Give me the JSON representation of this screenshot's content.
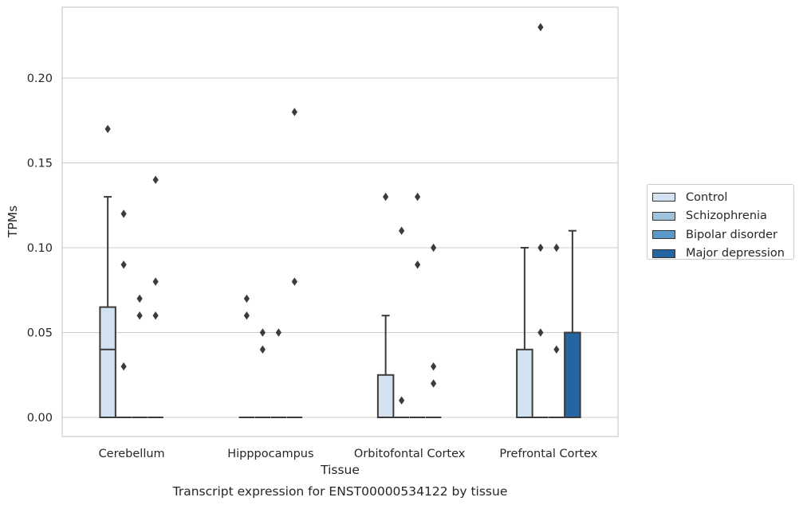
{
  "chart_data": {
    "type": "box",
    "title": "Transcript expression for ENST00000534122 by tissue",
    "xlabel": "Tissue",
    "ylabel": "TPMs",
    "categories": [
      "Cerebellum",
      "Hipppocampus",
      "Orbitofontal Cortex",
      "Prefrontal Cortex"
    ],
    "ylim": [
      -0.011,
      0.242
    ],
    "yticks": [
      "0.00",
      "0.05",
      "0.10",
      "0.15",
      "0.20"
    ],
    "ytick_values": [
      0,
      0.05,
      0.1,
      0.15,
      0.2
    ],
    "grid": "horizontal",
    "legend_position": "right",
    "series": [
      {
        "name": "Control",
        "color": "#d3e2f0",
        "boxes": [
          {
            "q1": 0,
            "median": 0.04,
            "q3": 0.065,
            "whislo": 0,
            "whishi": 0.13,
            "fliers": [
              0.17
            ]
          },
          {
            "q1": 0,
            "median": 0,
            "q3": 0,
            "whislo": 0,
            "whishi": 0,
            "fliers": [
              0.06,
              0.07
            ]
          },
          {
            "q1": 0,
            "median": 0,
            "q3": 0.025,
            "whislo": 0,
            "whishi": 0.06,
            "fliers": [
              0.13
            ]
          },
          {
            "q1": 0,
            "median": 0,
            "q3": 0.04,
            "whislo": 0,
            "whishi": 0.1,
            "fliers": []
          }
        ]
      },
      {
        "name": "Schizophrenia",
        "color": "#9fc3dc",
        "boxes": [
          {
            "q1": 0,
            "median": 0,
            "q3": 0,
            "whislo": 0,
            "whishi": 0,
            "fliers": [
              0.03,
              0.09,
              0.12
            ]
          },
          {
            "q1": 0,
            "median": 0,
            "q3": 0,
            "whislo": 0,
            "whishi": 0,
            "fliers": [
              0.04,
              0.05
            ]
          },
          {
            "q1": 0,
            "median": 0,
            "q3": 0,
            "whislo": 0,
            "whishi": 0,
            "fliers": [
              0.01,
              0.11
            ]
          },
          {
            "q1": 0,
            "median": 0,
            "q3": 0,
            "whislo": 0,
            "whishi": 0,
            "fliers": [
              0.05,
              0.1,
              0.23
            ]
          }
        ]
      },
      {
        "name": "Bipolar disorder",
        "color": "#5b9ac8",
        "boxes": [
          {
            "q1": 0,
            "median": 0,
            "q3": 0,
            "whislo": 0,
            "whishi": 0,
            "fliers": [
              0.06,
              0.07
            ]
          },
          {
            "q1": 0,
            "median": 0,
            "q3": 0,
            "whislo": 0,
            "whishi": 0,
            "fliers": [
              0.05
            ]
          },
          {
            "q1": 0,
            "median": 0,
            "q3": 0,
            "whislo": 0,
            "whishi": 0,
            "fliers": [
              0.09,
              0.13
            ]
          },
          {
            "q1": 0,
            "median": 0,
            "q3": 0,
            "whislo": 0,
            "whishi": 0,
            "fliers": [
              0.04,
              0.1
            ]
          }
        ]
      },
      {
        "name": "Major depression",
        "color": "#2565a3",
        "boxes": [
          {
            "q1": 0,
            "median": 0,
            "q3": 0,
            "whislo": 0,
            "whishi": 0,
            "fliers": [
              0.06,
              0.08,
              0.14
            ]
          },
          {
            "q1": 0,
            "median": 0,
            "q3": 0,
            "whislo": 0,
            "whishi": 0,
            "fliers": [
              0.08,
              0.18
            ]
          },
          {
            "q1": 0,
            "median": 0,
            "q3": 0,
            "whislo": 0,
            "whishi": 0,
            "fliers": [
              0.02,
              0.03,
              0.1
            ]
          },
          {
            "q1": 0,
            "median": 0,
            "q3": 0.05,
            "whislo": 0,
            "whishi": 0.11,
            "fliers": []
          }
        ]
      }
    ]
  }
}
